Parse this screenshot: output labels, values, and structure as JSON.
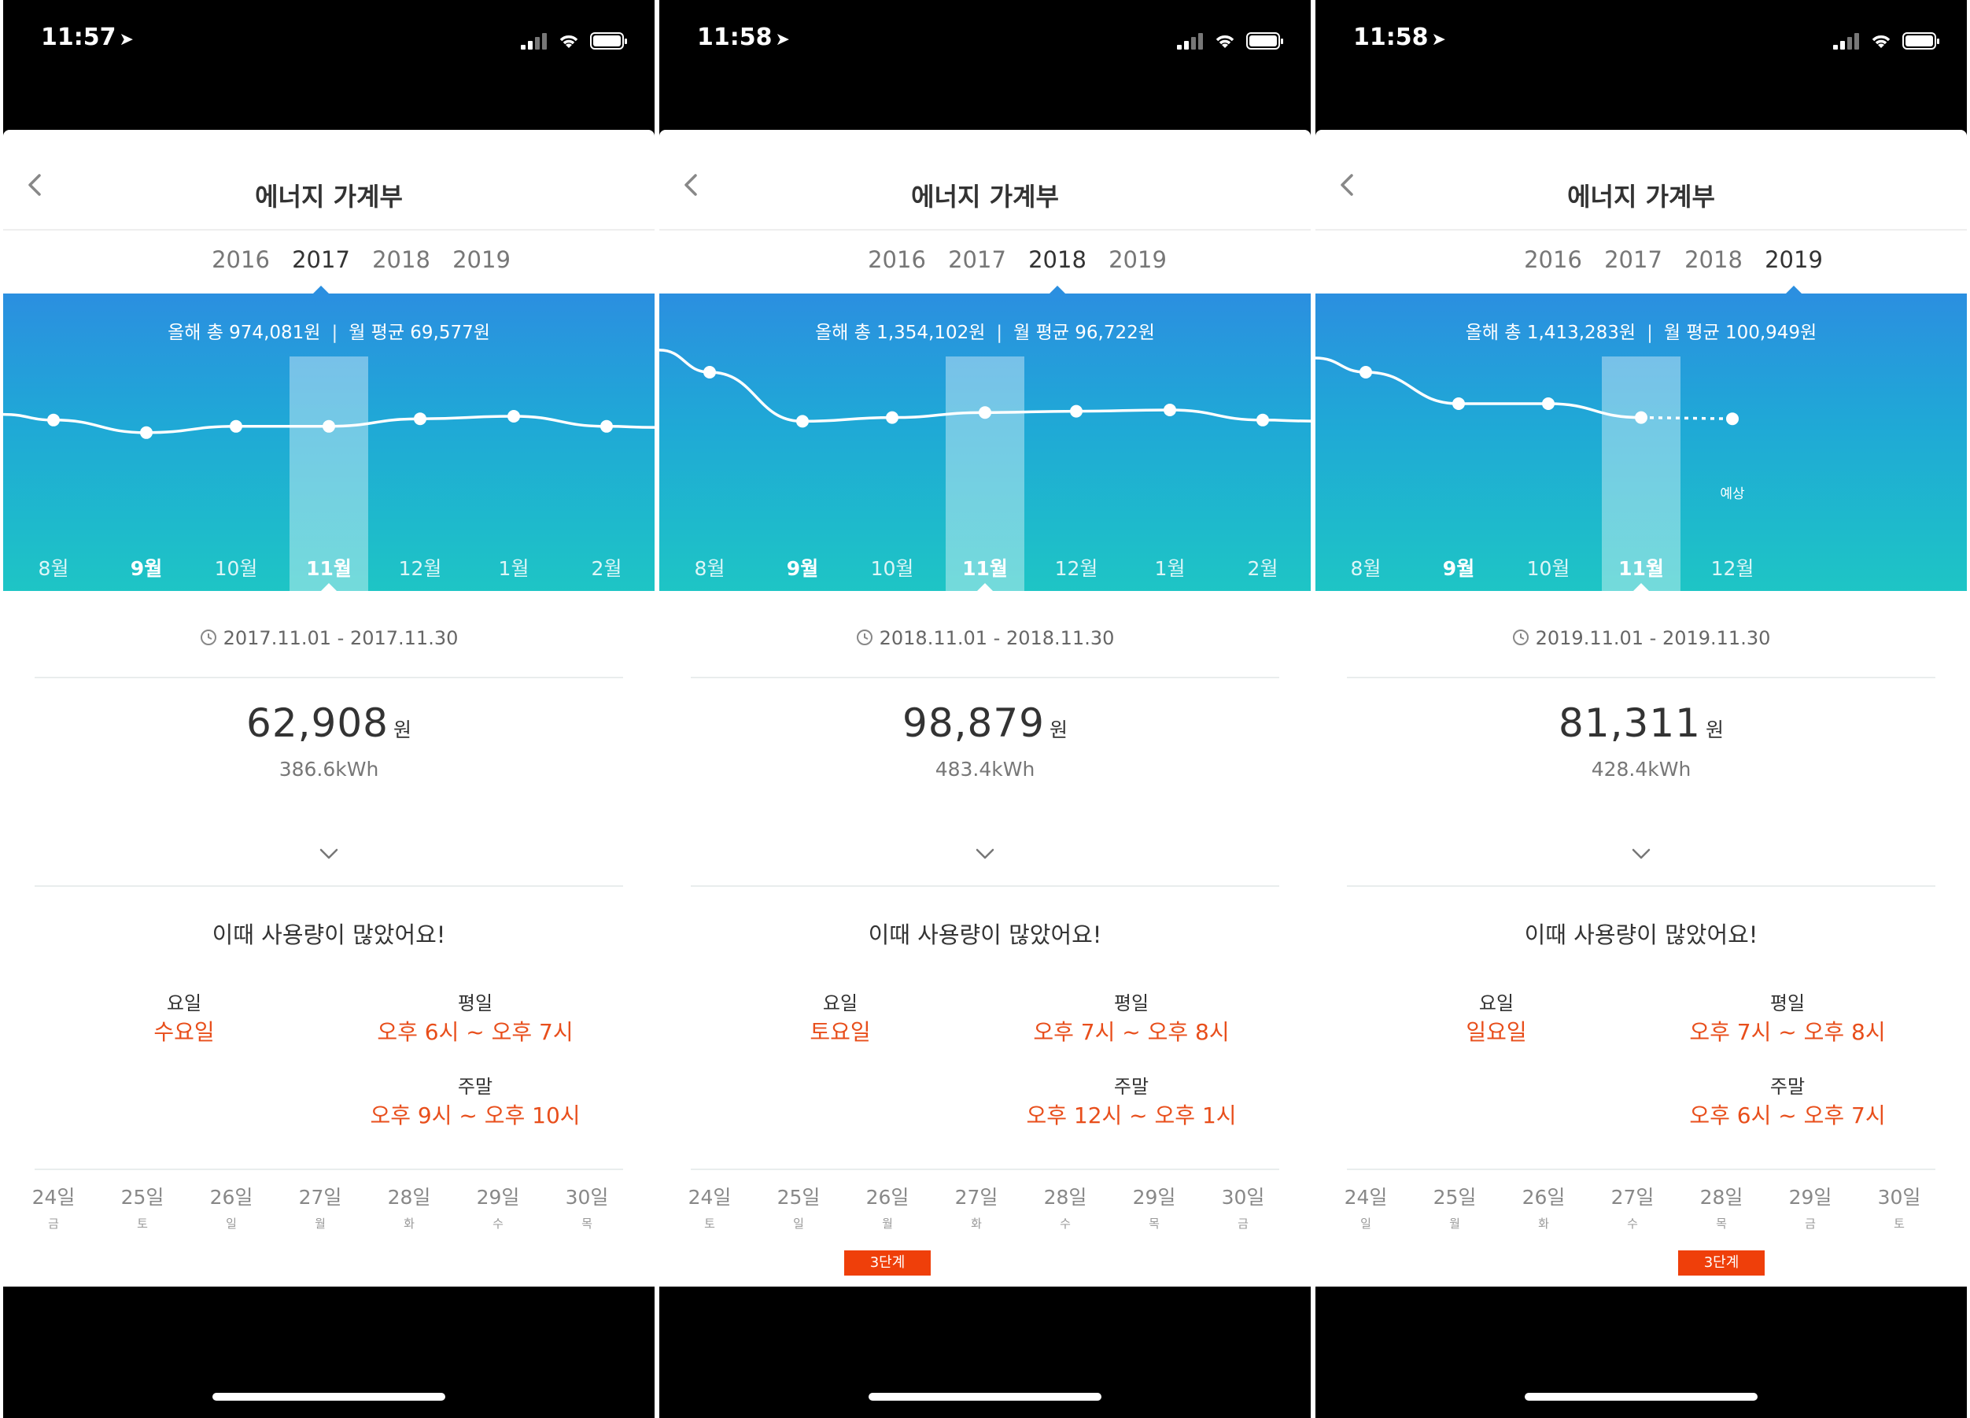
{
  "colors": {
    "accent": "#2b8fe0",
    "teal": "#1ec5c5",
    "highlight": "#e84e1b",
    "badge": "#ef3f0a"
  },
  "screens": [
    {
      "status": {
        "time": "11:57"
      },
      "title": "에너지 가계부",
      "years": [
        "2016",
        "2017",
        "2018",
        "2019"
      ],
      "active_year": "2017",
      "summary": {
        "total": "올해 총 974,081원",
        "sep": "|",
        "average": "월 평균 69,577원"
      },
      "months": [
        "8월",
        "9월",
        "10월",
        "11월",
        "12월",
        "1월",
        "2월"
      ],
      "bold_months": [
        "9월",
        "11월"
      ],
      "current_month": "11월",
      "forecast_label": "",
      "period": "2017.11.01 - 2017.11.30",
      "amount": "62,908",
      "unit": "원",
      "kwh": "386.6kWh",
      "peak_title": "이때 사용량이 많았어요!",
      "weekday_label": "요일",
      "weekday_value": "수요일",
      "weekdays_label": "평일",
      "weekdays_value": "오후 6시 ~ 오후 7시",
      "weekend_label": "주말",
      "weekend_value": "오후 9시 ~ 오후 10시",
      "days": [
        {
          "num": "24일",
          "week": "금"
        },
        {
          "num": "25일",
          "week": "토"
        },
        {
          "num": "26일",
          "week": "일"
        },
        {
          "num": "27일",
          "week": "월"
        },
        {
          "num": "28일",
          "week": "화"
        },
        {
          "num": "29일",
          "week": "수"
        },
        {
          "num": "30일",
          "week": "목"
        }
      ],
      "badge": ""
    },
    {
      "status": {
        "time": "11:58"
      },
      "title": "에너지 가계부",
      "years": [
        "2016",
        "2017",
        "2018",
        "2019"
      ],
      "active_year": "2018",
      "summary": {
        "total": "올해 총 1,354,102원",
        "sep": "|",
        "average": "월 평균 96,722원"
      },
      "months": [
        "8월",
        "9월",
        "10월",
        "11월",
        "12월",
        "1월",
        "2월"
      ],
      "bold_months": [
        "9월",
        "11월"
      ],
      "current_month": "11월",
      "forecast_label": "",
      "period": "2018.11.01 - 2018.11.30",
      "amount": "98,879",
      "unit": "원",
      "kwh": "483.4kWh",
      "peak_title": "이때 사용량이 많았어요!",
      "weekday_label": "요일",
      "weekday_value": "토요일",
      "weekdays_label": "평일",
      "weekdays_value": "오후 7시 ~ 오후 8시",
      "weekend_label": "주말",
      "weekend_value": "오후 12시 ~ 오후 1시",
      "days": [
        {
          "num": "24일",
          "week": "토"
        },
        {
          "num": "25일",
          "week": "일"
        },
        {
          "num": "26일",
          "week": "월"
        },
        {
          "num": "27일",
          "week": "화"
        },
        {
          "num": "28일",
          "week": "수"
        },
        {
          "num": "29일",
          "week": "목"
        },
        {
          "num": "30일",
          "week": "금"
        }
      ],
      "badge": "3단계",
      "badge_day_index": 2
    },
    {
      "status": {
        "time": "11:58"
      },
      "title": "에너지 가계부",
      "years": [
        "2016",
        "2017",
        "2018",
        "2019"
      ],
      "active_year": "2019",
      "summary": {
        "total": "올해 총 1,413,283원",
        "sep": "|",
        "average": "월 평균 100,949원"
      },
      "months": [
        "8월",
        "9월",
        "10월",
        "11월",
        "12월"
      ],
      "bold_months": [
        "9월",
        "11월"
      ],
      "current_month": "11월",
      "forecast_label": "예상",
      "period": "2019.11.01 - 2019.11.30",
      "amount": "81,311",
      "unit": "원",
      "kwh": "428.4kWh",
      "peak_title": "이때 사용량이 많았어요!",
      "weekday_label": "요일",
      "weekday_value": "일요일",
      "weekdays_label": "평일",
      "weekdays_value": "오후 7시 ~ 오후 8시",
      "weekend_label": "주말",
      "weekend_value": "오후 6시 ~ 오후 7시",
      "days": [
        {
          "num": "24일",
          "week": "일"
        },
        {
          "num": "25일",
          "week": "월"
        },
        {
          "num": "26일",
          "week": "화"
        },
        {
          "num": "27일",
          "week": "수"
        },
        {
          "num": "28일",
          "week": "목"
        },
        {
          "num": "29일",
          "week": "금"
        },
        {
          "num": "30일",
          "week": "토"
        }
      ],
      "badge": "3단계",
      "badge_day_index": 4
    }
  ],
  "chart_data": [
    {
      "type": "line",
      "categories": [
        "8월",
        "9월",
        "10월",
        "11월",
        "12월",
        "1월",
        "2월"
      ],
      "series": [
        {
          "values": [
            0.62,
            0.52,
            0.57,
            0.57,
            0.63,
            0.65,
            0.57
          ]
        }
      ],
      "note": "relative levels; no y-axis printed"
    },
    {
      "type": "line",
      "categories": [
        "8월",
        "9월",
        "10월",
        "11월",
        "12월",
        "1월",
        "2월"
      ],
      "series": [
        {
          "values": [
            1.0,
            0.61,
            0.64,
            0.68,
            0.69,
            0.7,
            0.62
          ]
        }
      ],
      "note": "relative levels; no y-axis printed"
    },
    {
      "type": "line",
      "categories": [
        "8월",
        "9월",
        "10월",
        "11월",
        "12월"
      ],
      "series": [
        {
          "values": [
            1.0,
            0.75,
            0.75,
            0.64,
            0.63
          ]
        }
      ],
      "forecast_index": 4,
      "note": "relative levels; last point is a forecast (예상)"
    }
  ]
}
